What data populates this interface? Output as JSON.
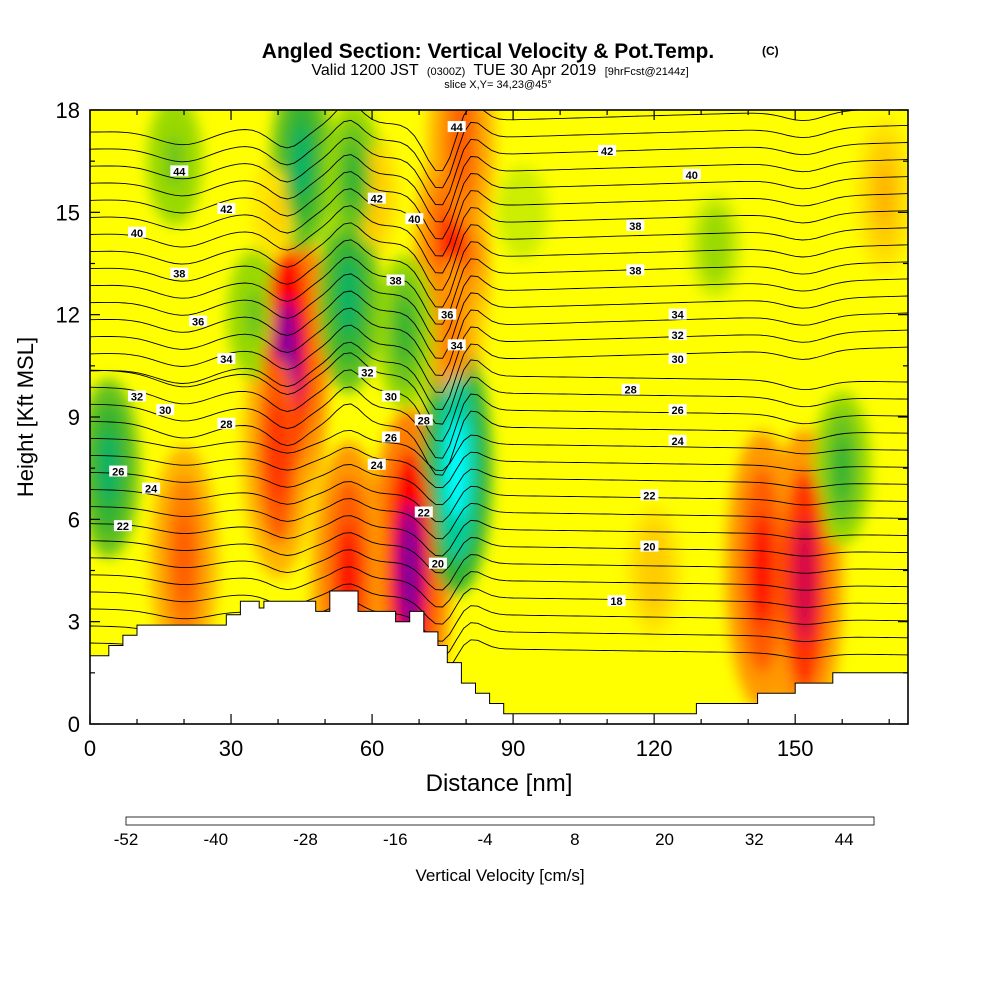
{
  "chart_data": {
    "type": "heatmap",
    "title": "Angled Section: Vertical Velocity & Pot.Temp.",
    "title_units": "(C)",
    "subtitle": {
      "prefix": "Valid 1200 JST",
      "utc": "(0300Z)",
      "date": "TUE 30 Apr 2019",
      "forecast": "[9hrFcst@2144z]"
    },
    "slice_label": "slice X,Y= 34,23@45°",
    "xlabel": "Distance [nm]",
    "ylabel": "Height [Kft MSL]",
    "xlim": [
      0,
      174
    ],
    "ylim": [
      0,
      18
    ],
    "x_ticks": [
      0,
      30,
      60,
      90,
      120,
      150
    ],
    "y_ticks": [
      0,
      3,
      6,
      9,
      12,
      15,
      18
    ],
    "grid": false,
    "colorbar": {
      "label": "Vertical Velocity [cm/s]",
      "placement": "bottom",
      "min": -52,
      "max": 48,
      "step": 4,
      "ticks": [
        -52,
        -40,
        -28,
        -16,
        -4,
        8,
        20,
        32,
        44
      ],
      "colors": [
        "#0000ff",
        "#0033ff",
        "#0066ff",
        "#0099ff",
        "#00ccff",
        "#00ffff",
        "#00e6cc",
        "#00cc99",
        "#00b366",
        "#33b233",
        "#66c21a",
        "#99d900",
        "#ccee00",
        "#ffff00",
        "#ffe600",
        "#ffcc00",
        "#ffb300",
        "#ff9900",
        "#ff7f00",
        "#ff5a00",
        "#ff3000",
        "#ff0000",
        "#d4004a",
        "#aa0077",
        "#800099"
      ]
    },
    "terrain": [
      [
        0,
        2
      ],
      [
        4,
        2
      ],
      [
        4,
        2.3
      ],
      [
        7,
        2.3
      ],
      [
        7,
        2.6
      ],
      [
        10,
        2.6
      ],
      [
        10,
        2.9
      ],
      [
        29,
        2.9
      ],
      [
        29,
        3.2
      ],
      [
        32,
        3.2
      ],
      [
        32,
        3.6
      ],
      [
        36,
        3.6
      ],
      [
        36,
        3.4
      ],
      [
        37,
        3.4
      ],
      [
        37,
        3.6
      ],
      [
        48,
        3.6
      ],
      [
        48,
        3.3
      ],
      [
        51,
        3.3
      ],
      [
        51,
        3.9
      ],
      [
        57,
        3.9
      ],
      [
        57,
        3.3
      ],
      [
        65,
        3.3
      ],
      [
        65,
        3.0
      ],
      [
        68,
        3.0
      ],
      [
        68,
        3.3
      ],
      [
        71,
        3.3
      ],
      [
        71,
        2.7
      ],
      [
        74,
        2.7
      ],
      [
        74,
        2.3
      ],
      [
        76,
        2.3
      ],
      [
        76,
        1.8
      ],
      [
        79,
        1.8
      ],
      [
        79,
        1.2
      ],
      [
        82,
        1.2
      ],
      [
        82,
        0.9
      ],
      [
        85,
        0.9
      ],
      [
        85,
        0.6
      ],
      [
        88,
        0.6
      ],
      [
        88,
        0.3
      ],
      [
        129,
        0.3
      ],
      [
        129,
        0.6
      ],
      [
        142,
        0.6
      ],
      [
        142,
        0.9
      ],
      [
        150,
        0.9
      ],
      [
        150,
        1.2
      ],
      [
        158,
        1.2
      ],
      [
        158,
        1.5
      ],
      [
        174,
        1.5
      ]
    ],
    "velocity_cells": [
      {
        "x": 20,
        "z": 4.8,
        "value": 26
      },
      {
        "x": 42,
        "z": 10.5,
        "value": 44
      },
      {
        "x": 40,
        "z": 8.0,
        "value": 30
      },
      {
        "x": 40,
        "z": 15.0,
        "value": 8
      },
      {
        "x": 68,
        "z": 4.5,
        "value": 44
      },
      {
        "x": 55,
        "z": 4.2,
        "value": 34
      },
      {
        "x": 77,
        "z": 13.5,
        "value": 34
      },
      {
        "x": 77,
        "z": 11.5,
        "value": 22
      },
      {
        "x": 79,
        "z": 17.0,
        "value": 26
      },
      {
        "x": 143,
        "z": 4.5,
        "value": 34
      },
      {
        "x": 152,
        "z": 4.2,
        "value": 38
      },
      {
        "x": 169,
        "z": 15.5,
        "value": 14
      },
      {
        "x": 120,
        "z": 4.5,
        "value": 10
      },
      {
        "x": 60,
        "z": 15.5,
        "value": 10
      },
      {
        "x": 4,
        "z": 7.5,
        "value": -18
      },
      {
        "x": 35,
        "z": 12.0,
        "value": -10
      },
      {
        "x": 45,
        "z": 16.5,
        "value": -18
      },
      {
        "x": 55,
        "z": 12.5,
        "value": -20
      },
      {
        "x": 56,
        "z": 16.0,
        "value": -14
      },
      {
        "x": 67,
        "z": 11.5,
        "value": -14
      },
      {
        "x": 78,
        "z": 7.5,
        "value": -30
      },
      {
        "x": 18,
        "z": 16.5,
        "value": -10
      },
      {
        "x": 133,
        "z": 14.0,
        "value": -6
      },
      {
        "x": 160,
        "z": 7.5,
        "value": -14
      },
      {
        "x": 92,
        "z": 15.0,
        "value": -4
      }
    ],
    "theta_levels": [
      18,
      20,
      22,
      24,
      26,
      28,
      30,
      32,
      34,
      36,
      38,
      40,
      42,
      44
    ],
    "contour_labels": [
      {
        "text": "44",
        "x": 19,
        "z": 16.2
      },
      {
        "text": "42",
        "x": 29,
        "z": 15.1
      },
      {
        "text": "40",
        "x": 10,
        "z": 14.4
      },
      {
        "text": "38",
        "x": 19,
        "z": 13.2
      },
      {
        "text": "36",
        "x": 23,
        "z": 11.8
      },
      {
        "text": "34",
        "x": 29,
        "z": 10.7
      },
      {
        "text": "32",
        "x": 10,
        "z": 9.6
      },
      {
        "text": "30",
        "x": 16,
        "z": 9.2
      },
      {
        "text": "28",
        "x": 29,
        "z": 8.8
      },
      {
        "text": "26",
        "x": 6,
        "z": 7.4
      },
      {
        "text": "24",
        "x": 13,
        "z": 6.9
      },
      {
        "text": "22",
        "x": 7,
        "z": 5.8
      },
      {
        "text": "42",
        "x": 61,
        "z": 15.4
      },
      {
        "text": "40",
        "x": 69,
        "z": 14.8
      },
      {
        "text": "38",
        "x": 65,
        "z": 13.0
      },
      {
        "text": "36",
        "x": 76,
        "z": 12.0
      },
      {
        "text": "34",
        "x": 78,
        "z": 11.1
      },
      {
        "text": "32",
        "x": 59,
        "z": 10.3
      },
      {
        "text": "30",
        "x": 64,
        "z": 9.6
      },
      {
        "text": "28",
        "x": 71,
        "z": 8.9
      },
      {
        "text": "26",
        "x": 64,
        "z": 8.4
      },
      {
        "text": "24",
        "x": 61,
        "z": 7.6
      },
      {
        "text": "22",
        "x": 71,
        "z": 6.2
      },
      {
        "text": "20",
        "x": 74,
        "z": 4.7
      },
      {
        "text": "44",
        "x": 78,
        "z": 17.5
      },
      {
        "text": "42",
        "x": 110,
        "z": 16.8
      },
      {
        "text": "40",
        "x": 128,
        "z": 16.1
      },
      {
        "text": "38",
        "x": 116,
        "z": 14.6
      },
      {
        "text": "38",
        "x": 116,
        "z": 13.3
      },
      {
        "text": "34",
        "x": 125,
        "z": 12.0
      },
      {
        "text": "32",
        "x": 125,
        "z": 11.4
      },
      {
        "text": "30",
        "x": 125,
        "z": 10.7
      },
      {
        "text": "28",
        "x": 115,
        "z": 9.8
      },
      {
        "text": "26",
        "x": 125,
        "z": 9.2
      },
      {
        "text": "24",
        "x": 125,
        "z": 8.3
      },
      {
        "text": "22",
        "x": 119,
        "z": 6.7
      },
      {
        "text": "20",
        "x": 119,
        "z": 5.2
      },
      {
        "text": "18",
        "x": 112,
        "z": 3.6
      }
    ]
  }
}
